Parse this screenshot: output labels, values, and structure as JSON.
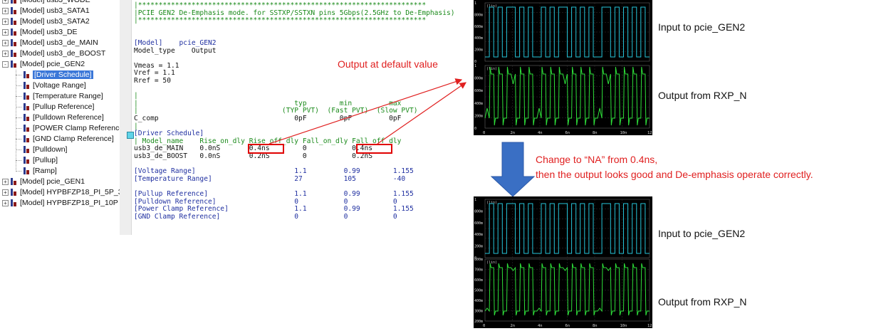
{
  "tree": {
    "items": [
      {
        "label": "[Model] usb3_WODE",
        "indent": 0,
        "expander": "+"
      },
      {
        "label": "[Model] usb3_SATA1",
        "indent": 0,
        "expander": "+"
      },
      {
        "label": "[Model] usb3_SATA2",
        "indent": 0,
        "expander": "+"
      },
      {
        "label": "[Model] usb3_DE",
        "indent": 0,
        "expander": "+"
      },
      {
        "label": "[Model] usb3_de_MAIN",
        "indent": 0,
        "expander": "+"
      },
      {
        "label": "[Model] usb3_de_BOOST",
        "indent": 0,
        "expander": "+"
      },
      {
        "label": "[Model] pcie_GEN2",
        "indent": 0,
        "expander": "-"
      },
      {
        "label": "[Driver Schedule]",
        "indent": 1,
        "selected": true
      },
      {
        "label": "[Voltage Range]",
        "indent": 1
      },
      {
        "label": "[Temperature Range]",
        "indent": 1
      },
      {
        "label": "[Pullup Reference]",
        "indent": 1
      },
      {
        "label": "[Pulldown Reference]",
        "indent": 1
      },
      {
        "label": "[POWER Clamp Reference]",
        "indent": 1
      },
      {
        "label": "[GND Clamp Reference]",
        "indent": 1
      },
      {
        "label": "[Pulldown]",
        "indent": 1
      },
      {
        "label": "[Pullup]",
        "indent": 1
      },
      {
        "label": "[Ramp]",
        "indent": 1
      },
      {
        "label": "[Model] pcie_GEN1",
        "indent": 0,
        "expander": "+"
      },
      {
        "label": "[Model] HYPBFZP18_PI_5P_3I",
        "indent": 0,
        "expander": "+"
      },
      {
        "label": "[Model] HYPBFZP18_PI_10P",
        "indent": 0,
        "expander": "+"
      }
    ]
  },
  "editor": {
    "lines": [
      {
        "text": "|**********************************************************************",
        "color": "green"
      },
      {
        "text": "|PCIE GEN2 De-Emphasis mode. for SSTXP/SSTXN pins 5Gbps(2.5GHz to De-Emphasis)",
        "color": "green"
      },
      {
        "text": "|**********************************************************************",
        "color": "green"
      },
      {
        "text": "",
        "color": "black"
      },
      {
        "text": "",
        "color": "black"
      },
      {
        "text": "[Model]    pcie_GEN2",
        "color": "blue"
      },
      {
        "text": "Model_type    Output",
        "color": "black"
      },
      {
        "text": "",
        "color": "black"
      },
      {
        "text": "Vmeas = 1.1",
        "color": "black"
      },
      {
        "text": "Vref = 1.1",
        "color": "black"
      },
      {
        "text": "Rref = 50",
        "color": "black"
      },
      {
        "text": "",
        "color": "black"
      },
      {
        "text": "|",
        "color": "green"
      },
      {
        "text": "|                                      typ        min         max",
        "color": "green"
      },
      {
        "text": "|                                   (TYP PVT)  (Fast PVT)  (Slow PVT)",
        "color": "green"
      },
      {
        "text": "C_comp                                 0pF        0pF         0pF",
        "color": "black"
      },
      {
        "text": "|",
        "color": "green"
      },
      {
        "text": "[Driver Schedule]",
        "color": "blue"
      },
      {
        "text": "| Model_name    Rise_on_dly Rise_off_dly Fall_on_dly Fall_off_dly",
        "color": "green"
      },
      {
        "text": "usb3_de_MAIN    0.0nS       0.4ns        0           0.4ns",
        "color": "black"
      },
      {
        "text": "usb3_de_BOOST   0.0nS       0.2nS        0           0.2nS",
        "color": "black"
      },
      {
        "text": "",
        "color": "black"
      },
      {
        "text": "[Voltage Range]                        1.1         0.99        1.155",
        "color": "blue"
      },
      {
        "text": "[Temperature Range]                    27          105         -40",
        "color": "blue"
      },
      {
        "text": "",
        "color": "black"
      },
      {
        "text": "[Pullup Reference]                     1.1         0.99        1.155",
        "color": "blue"
      },
      {
        "text": "[Pulldown Reference]                   0           0           0",
        "color": "blue"
      },
      {
        "text": "[Power Clamp Reference]                1.1         0.99        1.155",
        "color": "blue"
      },
      {
        "text": "[GND Clamp Reference]                  0           0           0",
        "color": "blue"
      }
    ],
    "colors": {
      "green": "#1a8a1a",
      "black": "#111111",
      "blue": "#1f2fa0"
    }
  },
  "annotations": {
    "output_default": "Output at default value",
    "change_note_line1": "Change to “NA” from 0.4ns,",
    "change_note_line2": "then the output looks good and De-emphasis operate correctly.",
    "red_color": "#e02020",
    "arrow_color": "#3a6fc4"
  },
  "panels": {
    "top": {
      "label_input": "Input to pcie_GEN2",
      "label_output": "Output from RXP_N",
      "axis_unit": "(lin)",
      "y_ticks_input": [
        "1",
        "800m",
        "600m",
        "400m",
        "200m",
        "0"
      ],
      "y_ticks_output": [
        "1",
        "800m",
        "600m",
        "400m",
        "200m",
        "0"
      ],
      "x_ticks": [
        "0",
        "2n",
        "4n",
        "6n",
        "8n",
        "10n",
        "12n"
      ]
    },
    "bottom": {
      "label_input": "Input to pcie_GEN2",
      "label_output": "Output from RXP_N",
      "axis_unit": "(lin)",
      "y_ticks_input": [
        "1",
        "800m",
        "600m",
        "400m",
        "200m",
        "0"
      ],
      "y_ticks_output": [
        "800m",
        "700m",
        "600m",
        "500m",
        "400m",
        "300m",
        "200m"
      ],
      "x_ticks": [
        "0",
        "2n",
        "4n",
        "6n",
        "8n",
        "10n",
        "12n"
      ]
    }
  }
}
